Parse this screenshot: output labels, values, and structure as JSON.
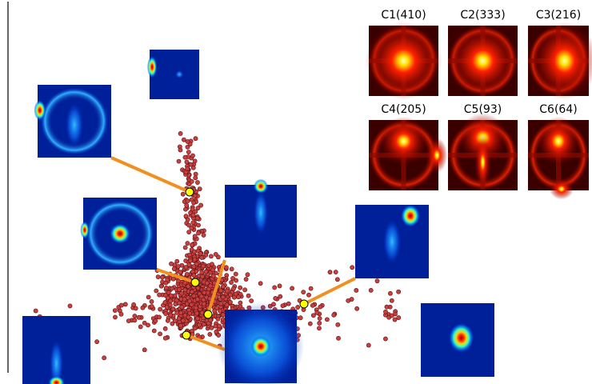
{
  "clusters": [
    {
      "label": "C1(410)"
    },
    {
      "label": "C2(333)"
    },
    {
      "label": "C3(216)"
    },
    {
      "label": "C4(205)"
    },
    {
      "label": "C5(93)"
    },
    {
      "label": "C6(64)"
    }
  ]
}
